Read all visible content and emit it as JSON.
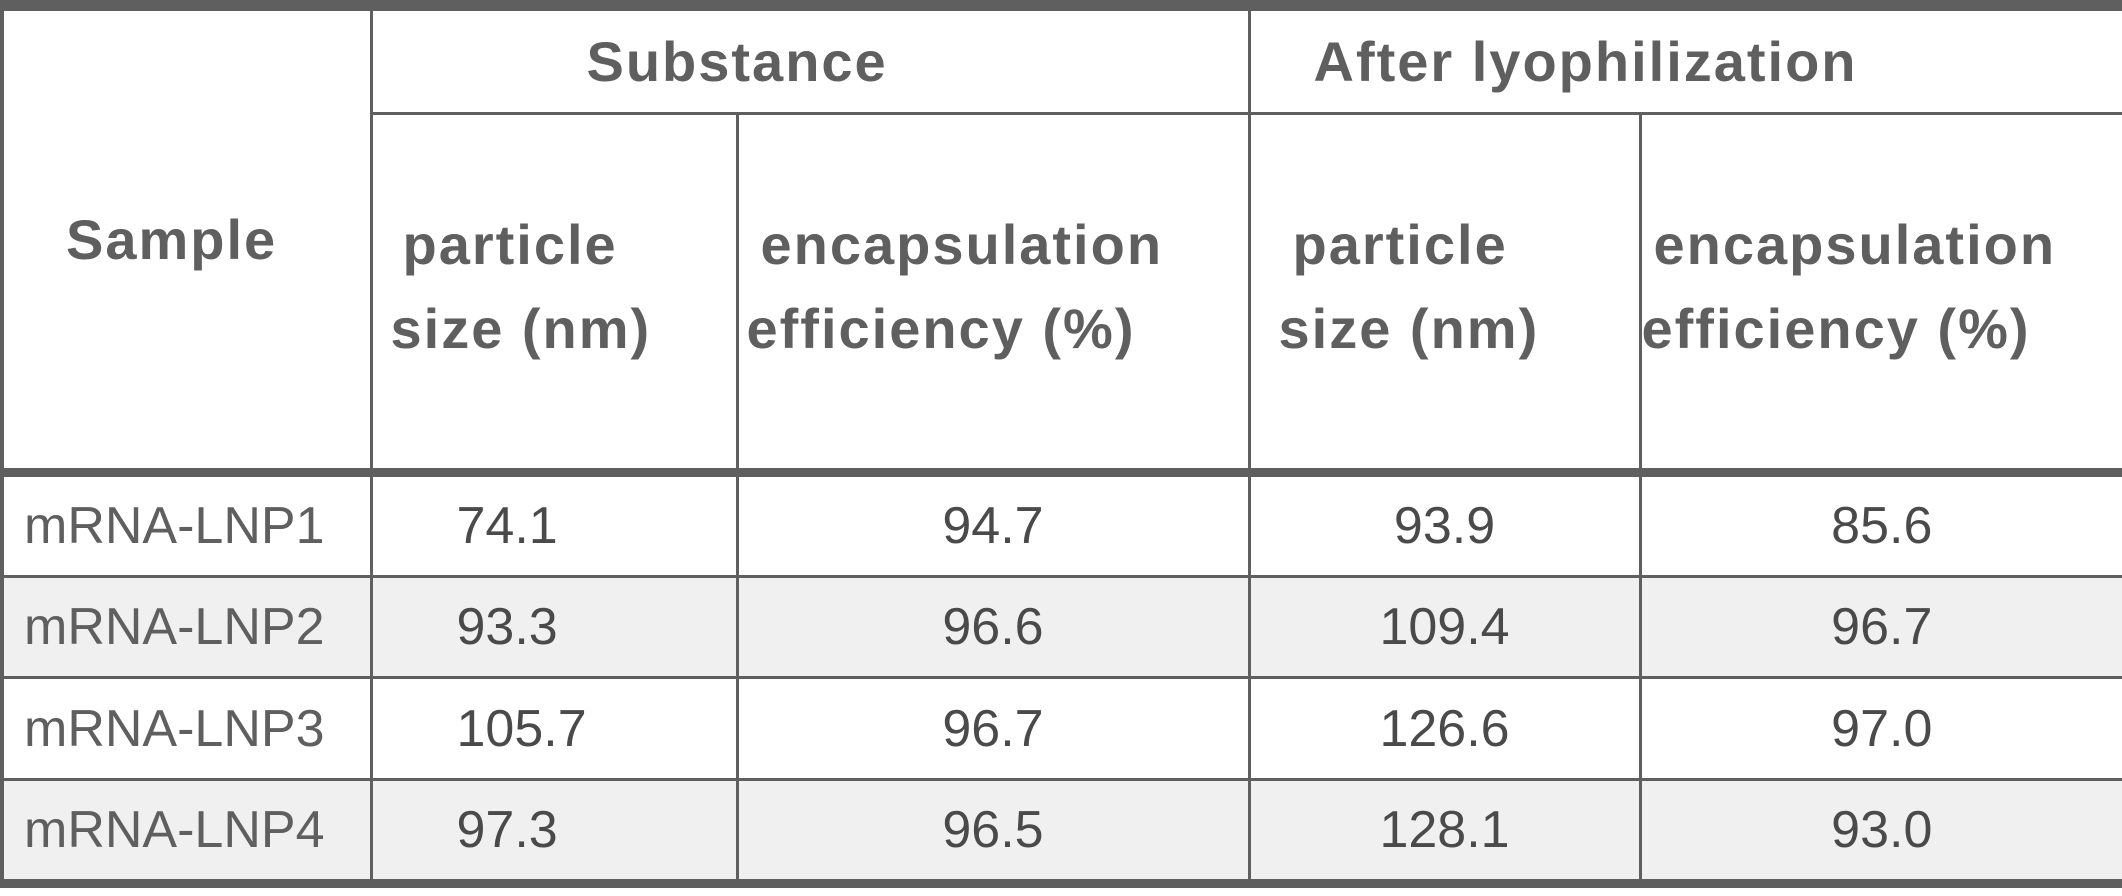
{
  "table": {
    "header": {
      "sample": "Sample",
      "group_1": "Substance",
      "group_2": "After lyophilization",
      "particle_size_line1": "particle",
      "particle_size_line2": "size (nm)",
      "encapsulation_line1": "encapsulation",
      "encapsulation_line2": "efficiency (%)"
    },
    "rows": [
      {
        "sample": "mRNA-LNP1",
        "substance_size": "74.1",
        "substance_ee": "94.7",
        "lyo_size": "93.9",
        "lyo_ee": "85.6"
      },
      {
        "sample": "mRNA-LNP2",
        "substance_size": "93.3",
        "substance_ee": "96.6",
        "lyo_size": "109.4",
        "lyo_ee": "96.7"
      },
      {
        "sample": "mRNA-LNP3",
        "substance_size": "105.7",
        "substance_ee": "96.7",
        "lyo_size": "126.6",
        "lyo_ee": "97.0"
      },
      {
        "sample": "mRNA-LNP4",
        "substance_size": "97.3",
        "substance_ee": "96.5",
        "lyo_size": "128.1",
        "lyo_ee": "93.0"
      }
    ],
    "colors": {
      "border": "#5f5f5f",
      "text": "#5f5f5f",
      "shaded_row": "#f0f0f0"
    }
  }
}
